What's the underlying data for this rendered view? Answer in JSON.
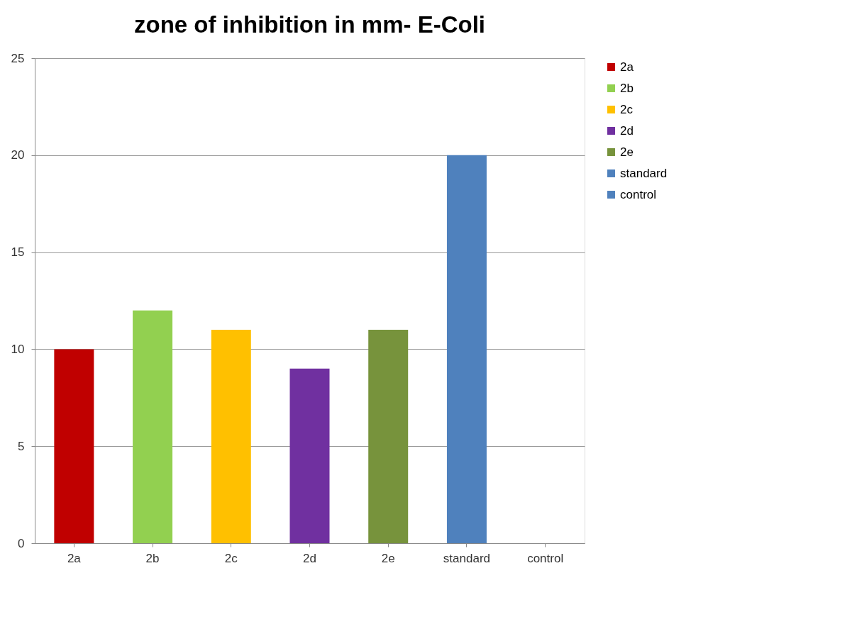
{
  "chart_data": {
    "type": "bar",
    "title": "zone of inhibition in mm- E-Coli",
    "categories": [
      "2a",
      "2b",
      "2c",
      "2d",
      "2e",
      "standard",
      "control"
    ],
    "series": [
      {
        "name": "2a",
        "color": "#c00000",
        "values": [
          10,
          null,
          null,
          null,
          null,
          null,
          null
        ]
      },
      {
        "name": "2b",
        "color": "#92d050",
        "values": [
          null,
          12,
          null,
          null,
          null,
          null,
          null
        ]
      },
      {
        "name": "2c",
        "color": "#ffc000",
        "values": [
          null,
          null,
          11,
          null,
          null,
          null,
          null
        ]
      },
      {
        "name": "2d",
        "color": "#7030a0",
        "values": [
          null,
          null,
          null,
          9,
          null,
          null,
          null
        ]
      },
      {
        "name": "2e",
        "color": "#77933c",
        "values": [
          null,
          null,
          null,
          null,
          11,
          null,
          null
        ]
      },
      {
        "name": "standard",
        "color": "#4f81bd",
        "values": [
          null,
          null,
          null,
          null,
          null,
          20,
          null
        ]
      },
      {
        "name": "control",
        "color": "#4f81bd",
        "values": [
          null,
          null,
          null,
          null,
          null,
          null,
          0
        ]
      }
    ],
    "ylim": [
      0,
      25
    ],
    "yticks": [
      0,
      5,
      10,
      15,
      20,
      25
    ],
    "grid": "y",
    "legend": "right"
  }
}
